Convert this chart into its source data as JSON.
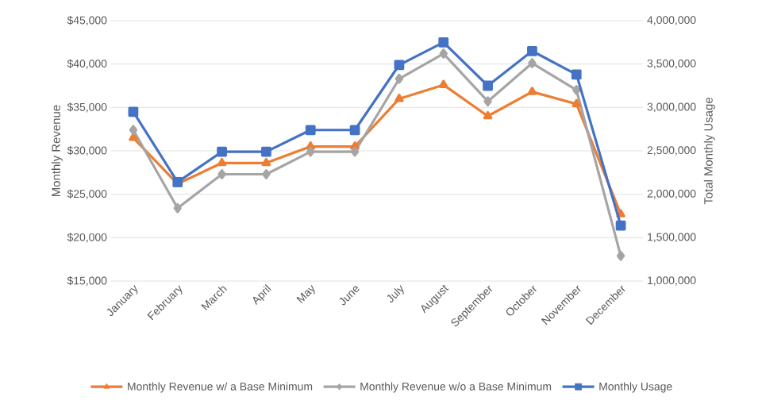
{
  "chart_data": {
    "type": "line",
    "ylabel": "Monthly Revenue",
    "y2label": "Total Monthly Usage",
    "categories": [
      "January",
      "February",
      "March",
      "April",
      "May",
      "June",
      "July",
      "August",
      "September",
      "October",
      "November",
      "December"
    ],
    "series": [
      {
        "name": "Monthly Revenue w/ a Base Minimum",
        "color": "#ed7d31",
        "marker": "triangle",
        "values": [
          31500,
          26200,
          28600,
          28600,
          30500,
          30500,
          36000,
          37600,
          34000,
          36800,
          35400,
          22700
        ]
      },
      {
        "name": "Monthly Revenue w/o a Base Minimum",
        "color": "#a5a5a5",
        "marker": "diamond",
        "values": [
          32400,
          23400,
          27300,
          27300,
          29900,
          29900,
          38300,
          41200,
          35700,
          40100,
          37000,
          17900
        ]
      },
      {
        "name": "Monthly Usage",
        "color": "#4472c4",
        "marker": "square",
        "axis": "y2",
        "values": [
          2950000,
          2140000,
          2490000,
          2490000,
          2740000,
          2740000,
          3490000,
          3750000,
          3250000,
          3650000,
          3380000,
          1640000
        ]
      }
    ],
    "ylim": [
      15000,
      45000
    ],
    "yticks": [
      {
        "value": 15000,
        "label": "$15,000"
      },
      {
        "value": 20000,
        "label": "$20,000"
      },
      {
        "value": 25000,
        "label": "$25,000"
      },
      {
        "value": 30000,
        "label": "$30,000"
      },
      {
        "value": 35000,
        "label": "$35,000"
      },
      {
        "value": 40000,
        "label": "$40,000"
      },
      {
        "value": 45000,
        "label": "$45,000"
      }
    ],
    "y2lim": [
      1000000,
      4000000
    ],
    "y2ticks": [
      {
        "value": 1000000,
        "label": "1,000,000"
      },
      {
        "value": 1500000,
        "label": "1,500,000"
      },
      {
        "value": 2000000,
        "label": "2,000,000"
      },
      {
        "value": 2500000,
        "label": "2,500,000"
      },
      {
        "value": 3000000,
        "label": "3,000,000"
      },
      {
        "value": 3500000,
        "label": "3,500,000"
      },
      {
        "value": 4000000,
        "label": "4,000,000"
      }
    ],
    "grid": "y",
    "legend": "bottom",
    "line_style": "solid"
  }
}
